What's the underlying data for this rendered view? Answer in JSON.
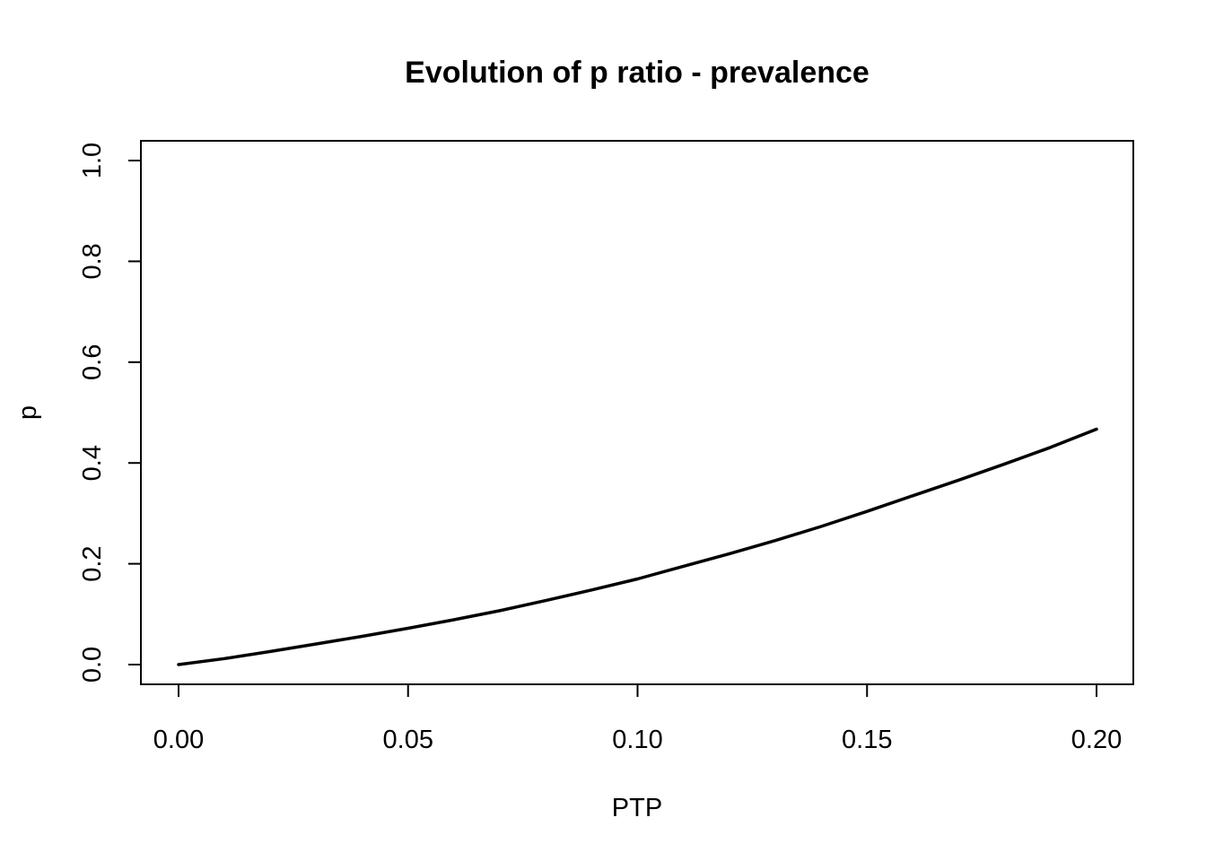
{
  "chart_data": {
    "type": "line",
    "title": "Evolution of p ratio - prevalence",
    "xlabel": "PTP",
    "ylabel": "p",
    "xlim": [
      0.0,
      0.2
    ],
    "ylim": [
      0.0,
      1.0
    ],
    "x_ticks": [
      "0.00",
      "0.05",
      "0.10",
      "0.15",
      "0.20"
    ],
    "y_ticks": [
      "0.0",
      "0.2",
      "0.4",
      "0.6",
      "0.8",
      "1.0"
    ],
    "grid": false,
    "legend": "none",
    "line_color": "#000000",
    "series": [
      {
        "x": [
          0.0,
          0.01,
          0.02,
          0.03,
          0.04,
          0.05,
          0.06,
          0.07,
          0.08,
          0.09,
          0.1,
          0.11,
          0.12,
          0.13,
          0.14,
          0.15,
          0.16,
          0.17,
          0.18,
          0.19,
          0.2
        ],
        "y": [
          0.0,
          0.012,
          0.026,
          0.041,
          0.056,
          0.072,
          0.089,
          0.107,
          0.127,
          0.148,
          0.17,
          0.195,
          0.22,
          0.246,
          0.274,
          0.304,
          0.335,
          0.366,
          0.398,
          0.431,
          0.467
        ]
      }
    ]
  }
}
